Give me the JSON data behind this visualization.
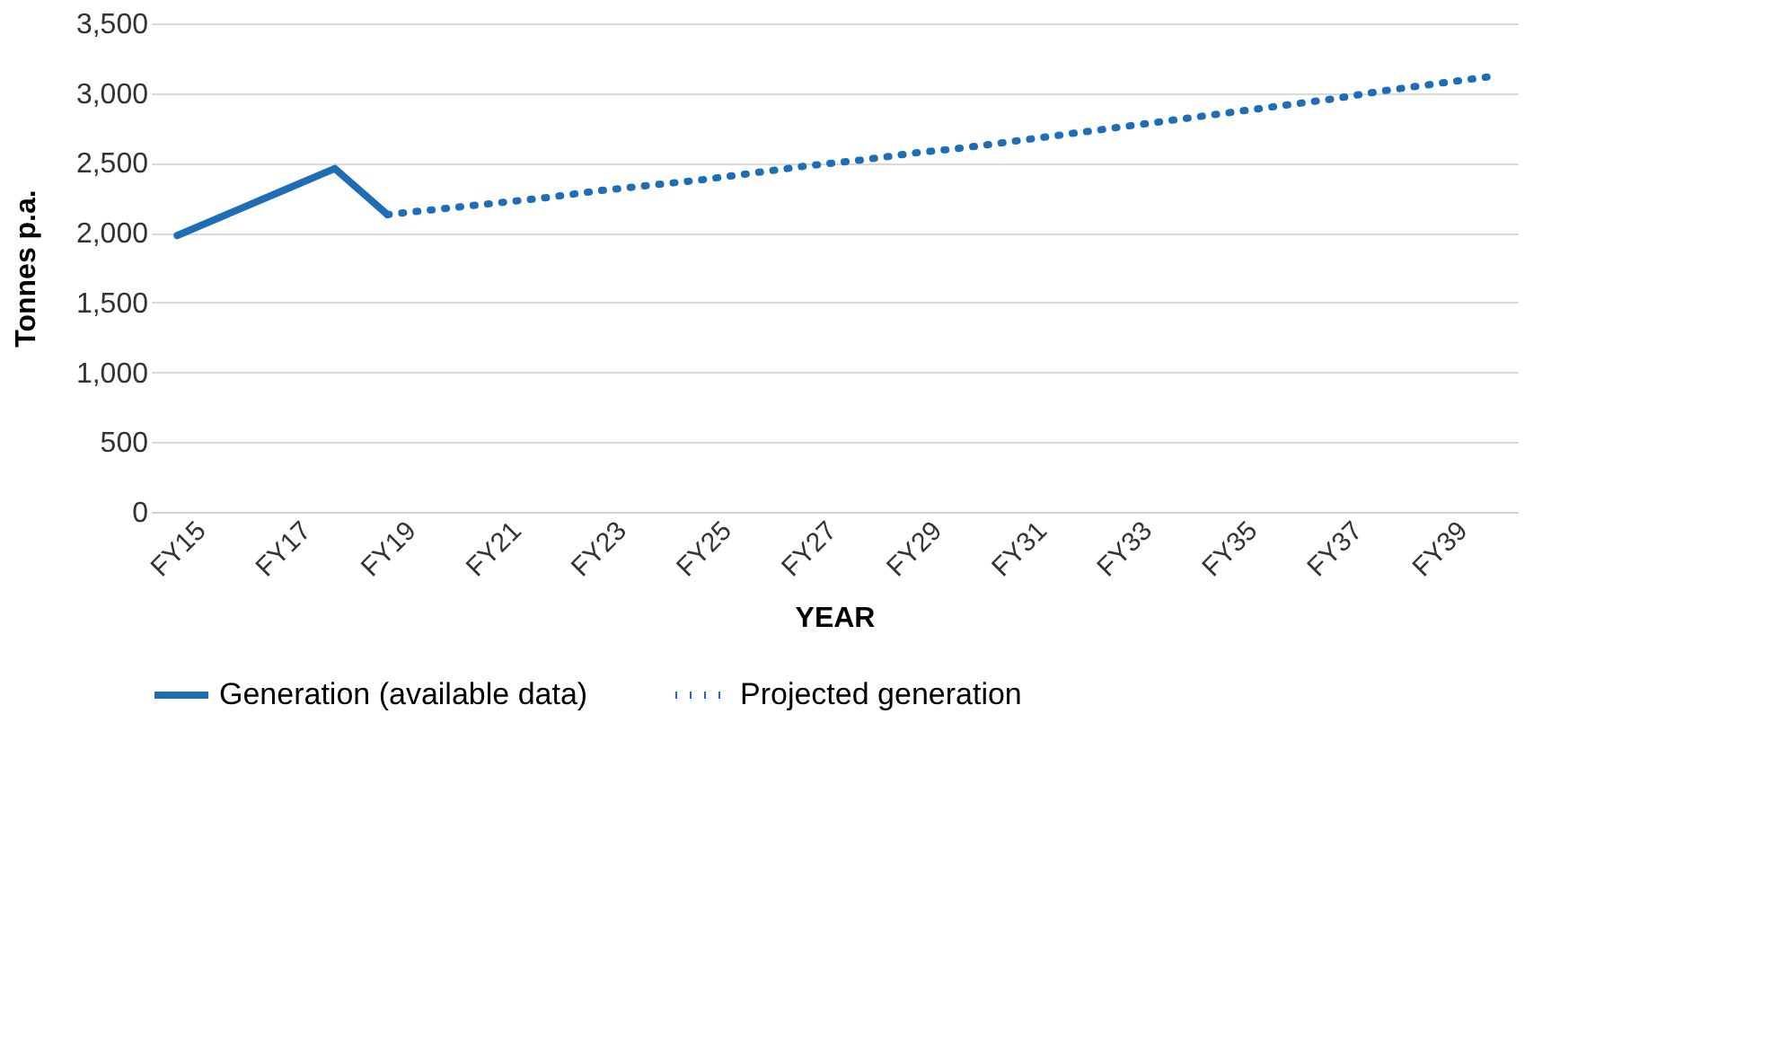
{
  "chart_data": {
    "type": "line",
    "xlabel": "YEAR",
    "ylabel": "Tonnes p.a.",
    "categories": [
      "FY15",
      null,
      "FY17",
      null,
      "FY19",
      null,
      "FY21",
      null,
      "FY23",
      null,
      "FY25",
      null,
      "FY27",
      null,
      "FY29",
      null,
      "FY31",
      null,
      "FY33",
      null,
      "FY35",
      null,
      "FY37",
      null,
      "FY39",
      null
    ],
    "series": [
      {
        "name": "Generation (available data)",
        "color": "#1f6eb5",
        "line_style": "solid",
        "values": [
          1980,
          2140,
          2300,
          2460,
          2130,
          null,
          null,
          null,
          null,
          null,
          null,
          null,
          null,
          null,
          null,
          null,
          null,
          null,
          null,
          null,
          null,
          null,
          null,
          null,
          null,
          null
        ]
      },
      {
        "name": "Projected generation",
        "color": "#1f6eb5",
        "line_style": "dotted",
        "values": [
          null,
          null,
          null,
          null,
          2130,
          2170,
          2210,
          2250,
          2300,
          2340,
          2380,
          2430,
          2480,
          2520,
          2570,
          2610,
          2660,
          2710,
          2760,
          2810,
          2860,
          2910,
          2960,
          3020,
          3070,
          3120
        ]
      }
    ],
    "ylim": [
      0,
      3500
    ],
    "yticks": [
      0,
      {
        "value": 500,
        "label": "500"
      },
      {
        "value": 1000,
        "label": "1,000"
      },
      {
        "value": 1500,
        "label": "1,500"
      },
      {
        "value": 2000,
        "label": "2,000"
      },
      {
        "value": 2500,
        "label": "2,500"
      },
      {
        "value": 3000,
        "label": "3,000"
      },
      {
        "value": 3500,
        "label": "3,500"
      }
    ],
    "grid": "y",
    "legend": "bottom",
    "marker": "none"
  }
}
